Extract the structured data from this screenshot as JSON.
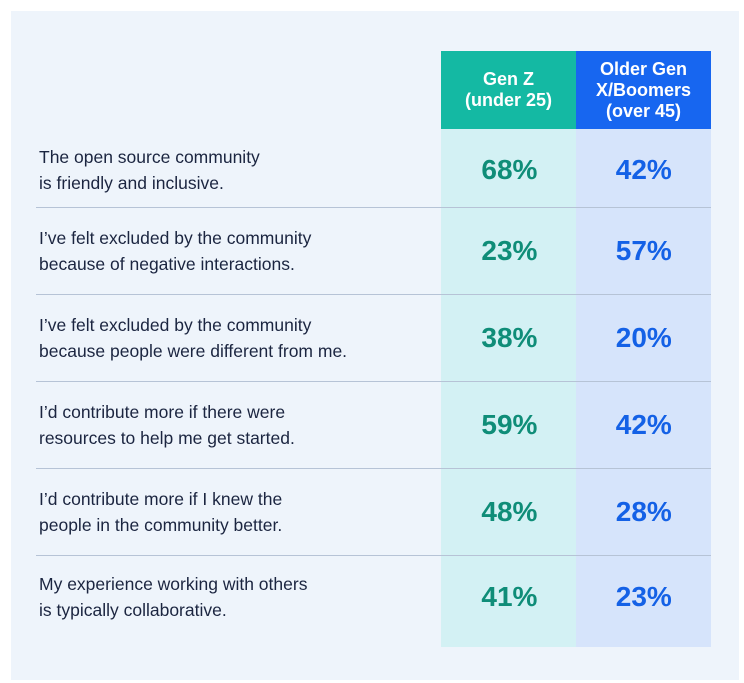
{
  "chart_data": {
    "type": "table",
    "columns": [
      "Gen Z\n(under 25)",
      "Older Gen\nX/Boomers\n(over 45)"
    ],
    "rows": [
      {
        "label": "The open source community\nis friendly and inclusive.",
        "genz": "68%",
        "older": "42%"
      },
      {
        "label": "I’ve felt excluded by the community\nbecause of negative interactions.",
        "genz": "23%",
        "older": "57%"
      },
      {
        "label": "I’ve felt excluded by the community\nbecause people were different from me.",
        "genz": "38%",
        "older": "20%"
      },
      {
        "label": "I’d contribute more if there were\nresources to help me get started.",
        "genz": "59%",
        "older": "42%"
      },
      {
        "label": "I’d contribute more if I knew the\npeople in the community better.",
        "genz": "48%",
        "older": "28%"
      },
      {
        "label": "My experience working with others\nis typically collaborative.",
        "genz": "41%",
        "older": "23%"
      }
    ],
    "series": [
      {
        "name": "Gen Z (under 25)",
        "values": [
          68,
          23,
          38,
          59,
          48,
          41
        ]
      },
      {
        "name": "Older Gen X/Boomers (over 45)",
        "values": [
          42,
          57,
          20,
          42,
          28,
          23
        ]
      }
    ],
    "colors": {
      "genz_header": "#14b9a3",
      "older_header": "#1766f0",
      "genz_value": "#0f8d78",
      "older_value": "#1461e6",
      "genz_column": "#d3f1f4",
      "older_column": "#d6e4fb",
      "panel": "#eef4fb"
    }
  }
}
